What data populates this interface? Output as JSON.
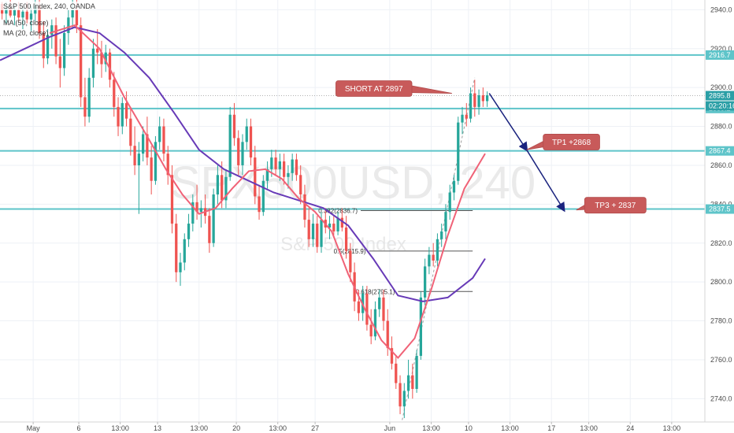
{
  "chart_data": {
    "type": "candlestick",
    "legend": {
      "symbol": "S&P 500 Index, 240, OANDA",
      "ma50": "MA (50, close)",
      "ma20": "MA (20, close)"
    },
    "watermark": {
      "ticker": "SPX500USD, 240",
      "description": "S&P 500 Index"
    },
    "y_axis": {
      "range": [
        2728,
        2945
      ],
      "ticks": [
        {
          "value": 2740,
          "label": "2740.0"
        },
        {
          "value": 2760,
          "label": "2760.0"
        },
        {
          "value": 2780,
          "label": "2780.0"
        },
        {
          "value": 2800,
          "label": "2800.0"
        },
        {
          "value": 2820,
          "label": "2820.0"
        },
        {
          "value": 2840,
          "label": "2840.0"
        },
        {
          "value": 2860,
          "label": "2860.0"
        },
        {
          "value": 2880,
          "label": "2880.0"
        },
        {
          "value": 2900,
          "label": "2900.0"
        },
        {
          "value": 2920,
          "label": "2920.0"
        },
        {
          "value": 2940,
          "label": "2940.0"
        }
      ]
    },
    "x_axis": {
      "range": [
        0,
        170
      ],
      "ticks": [
        {
          "x": 8,
          "label": "May"
        },
        {
          "x": 19,
          "label": "6"
        },
        {
          "x": 29,
          "label": "13:00"
        },
        {
          "x": 38,
          "label": "13"
        },
        {
          "x": 48,
          "label": "13:00"
        },
        {
          "x": 57,
          "label": "20"
        },
        {
          "x": 67,
          "label": "13:00"
        },
        {
          "x": 76,
          "label": "27"
        },
        {
          "x": 94,
          "label": "Jun"
        },
        {
          "x": 104,
          "label": "13:00"
        },
        {
          "x": 113,
          "label": "10"
        },
        {
          "x": 123,
          "label": "13:00"
        },
        {
          "x": 133,
          "label": "17"
        },
        {
          "x": 142,
          "label": "13:00"
        },
        {
          "x": 152,
          "label": "24"
        },
        {
          "x": 162,
          "label": "13:00"
        }
      ]
    },
    "horizontal_levels": [
      {
        "value": 2916.7,
        "label": "2916.7",
        "color": "#5ec4c9"
      },
      {
        "value": 2889.2,
        "label": "2889.2",
        "color": "#5ec4c9"
      },
      {
        "value": 2867.4,
        "label": "2867.4",
        "color": "#5ec4c9"
      },
      {
        "value": 2837.5,
        "label": "2837.5",
        "color": "#5ec4c9"
      }
    ],
    "current_price": {
      "value": 2895.8,
      "label": "2895.8",
      "countdown": "02:20:16",
      "color": "#2b9fa6"
    },
    "fibonacci": [
      {
        "label": "0.382(2836.7)",
        "value": 2836.7,
        "x_start": 87,
        "x_end": 114
      },
      {
        "label": "0.5(2815.9)",
        "value": 2815.9,
        "x_start": 89,
        "x_end": 114
      },
      {
        "label": "0.618(2795.1)",
        "value": 2795.1,
        "x_start": 96,
        "x_end": 114
      }
    ],
    "annotations": [
      {
        "text": "SHORT AT 2897",
        "x": 81,
        "y": 2903.5,
        "pointer_x": 109,
        "pointer_y": 2897
      },
      {
        "text": "TP1 +2868",
        "x": 131,
        "y": 2876,
        "pointer_x": 127,
        "pointer_y": 2868
      },
      {
        "text": "TP3 + 2837",
        "x": 141,
        "y": 2843.5,
        "pointer_x": 139,
        "pointer_y": 2837
      }
    ],
    "projection_path": [
      {
        "x": 118,
        "y": 2897
      },
      {
        "x": 127,
        "y": 2868
      },
      {
        "x": 136,
        "y": 2837
      }
    ],
    "ma50": [
      {
        "x": 0,
        "y": 2914
      },
      {
        "x": 6,
        "y": 2920
      },
      {
        "x": 12,
        "y": 2926
      },
      {
        "x": 18,
        "y": 2931
      },
      {
        "x": 24,
        "y": 2928
      },
      {
        "x": 30,
        "y": 2918
      },
      {
        "x": 36,
        "y": 2905
      },
      {
        "x": 42,
        "y": 2887
      },
      {
        "x": 48,
        "y": 2868
      },
      {
        "x": 54,
        "y": 2858
      },
      {
        "x": 60,
        "y": 2852
      },
      {
        "x": 66,
        "y": 2846
      },
      {
        "x": 72,
        "y": 2842
      },
      {
        "x": 78,
        "y": 2838
      },
      {
        "x": 84,
        "y": 2829
      },
      {
        "x": 90,
        "y": 2812
      },
      {
        "x": 96,
        "y": 2793
      },
      {
        "x": 102,
        "y": 2790
      },
      {
        "x": 108,
        "y": 2792
      },
      {
        "x": 114,
        "y": 2802
      },
      {
        "x": 117,
        "y": 2812
      }
    ],
    "ma20": [
      {
        "x": 12,
        "y": 2928
      },
      {
        "x": 18,
        "y": 2932
      },
      {
        "x": 24,
        "y": 2920
      },
      {
        "x": 30,
        "y": 2895
      },
      {
        "x": 36,
        "y": 2873
      },
      {
        "x": 40,
        "y": 2858
      },
      {
        "x": 44,
        "y": 2845
      },
      {
        "x": 48,
        "y": 2835
      },
      {
        "x": 52,
        "y": 2838
      },
      {
        "x": 56,
        "y": 2848
      },
      {
        "x": 60,
        "y": 2857
      },
      {
        "x": 64,
        "y": 2858
      },
      {
        "x": 68,
        "y": 2853
      },
      {
        "x": 72,
        "y": 2843
      },
      {
        "x": 76,
        "y": 2836
      },
      {
        "x": 80,
        "y": 2826
      },
      {
        "x": 84,
        "y": 2804
      },
      {
        "x": 88,
        "y": 2786
      },
      {
        "x": 92,
        "y": 2770
      },
      {
        "x": 96,
        "y": 2761
      },
      {
        "x": 100,
        "y": 2771
      },
      {
        "x": 104,
        "y": 2796
      },
      {
        "x": 108,
        "y": 2824
      },
      {
        "x": 112,
        "y": 2848
      },
      {
        "x": 117,
        "y": 2866
      }
    ],
    "candles": [
      {
        "x": 0,
        "o": 2943,
        "h": 2944,
        "l": 2935,
        "c": 2938
      },
      {
        "x": 1,
        "o": 2938,
        "h": 2944,
        "l": 2933,
        "c": 2941
      },
      {
        "x": 2,
        "o": 2941,
        "h": 2945,
        "l": 2936,
        "c": 2937
      },
      {
        "x": 3,
        "o": 2937,
        "h": 2942,
        "l": 2932,
        "c": 2940
      },
      {
        "x": 4,
        "o": 2940,
        "h": 2944,
        "l": 2934,
        "c": 2936
      },
      {
        "x": 5,
        "o": 2936,
        "h": 2941,
        "l": 2930,
        "c": 2939
      },
      {
        "x": 6,
        "o": 2939,
        "h": 2944,
        "l": 2933,
        "c": 2935
      },
      {
        "x": 7,
        "o": 2935,
        "h": 2942,
        "l": 2929,
        "c": 2938
      },
      {
        "x": 8,
        "o": 2938,
        "h": 2945,
        "l": 2934,
        "c": 2942
      },
      {
        "x": 9,
        "o": 2942,
        "h": 2945,
        "l": 2925,
        "c": 2928
      },
      {
        "x": 10,
        "o": 2928,
        "h": 2934,
        "l": 2910,
        "c": 2915
      },
      {
        "x": 11,
        "o": 2915,
        "h": 2930,
        "l": 2912,
        "c": 2927
      },
      {
        "x": 12,
        "o": 2927,
        "h": 2935,
        "l": 2920,
        "c": 2932
      },
      {
        "x": 13,
        "o": 2932,
        "h": 2936,
        "l": 2912,
        "c": 2916
      },
      {
        "x": 14,
        "o": 2916,
        "h": 2925,
        "l": 2900,
        "c": 2910
      },
      {
        "x": 15,
        "o": 2910,
        "h": 2932,
        "l": 2906,
        "c": 2928
      },
      {
        "x": 16,
        "o": 2928,
        "h": 2940,
        "l": 2922,
        "c": 2936
      },
      {
        "x": 17,
        "o": 2936,
        "h": 2945,
        "l": 2930,
        "c": 2940
      },
      {
        "x": 18,
        "o": 2940,
        "h": 2945,
        "l": 2928,
        "c": 2932
      },
      {
        "x": 19,
        "o": 2932,
        "h": 2936,
        "l": 2890,
        "c": 2895
      },
      {
        "x": 20,
        "o": 2895,
        "h": 2905,
        "l": 2880,
        "c": 2885
      },
      {
        "x": 21,
        "o": 2885,
        "h": 2910,
        "l": 2882,
        "c": 2905
      },
      {
        "x": 22,
        "o": 2905,
        "h": 2925,
        "l": 2900,
        "c": 2920
      },
      {
        "x": 23,
        "o": 2920,
        "h": 2930,
        "l": 2912,
        "c": 2918
      },
      {
        "x": 24,
        "o": 2918,
        "h": 2924,
        "l": 2905,
        "c": 2912
      },
      {
        "x": 25,
        "o": 2912,
        "h": 2922,
        "l": 2908,
        "c": 2918
      },
      {
        "x": 26,
        "o": 2918,
        "h": 2920,
        "l": 2900,
        "c": 2904
      },
      {
        "x": 27,
        "o": 2904,
        "h": 2908,
        "l": 2885,
        "c": 2890
      },
      {
        "x": 28,
        "o": 2890,
        "h": 2895,
        "l": 2875,
        "c": 2880
      },
      {
        "x": 29,
        "o": 2880,
        "h": 2895,
        "l": 2876,
        "c": 2892
      },
      {
        "x": 30,
        "o": 2892,
        "h": 2898,
        "l": 2880,
        "c": 2884
      },
      {
        "x": 31,
        "o": 2884,
        "h": 2890,
        "l": 2865,
        "c": 2870
      },
      {
        "x": 32,
        "o": 2870,
        "h": 2880,
        "l": 2855,
        "c": 2860
      },
      {
        "x": 33,
        "o": 2860,
        "h": 2872,
        "l": 2835,
        "c": 2866
      },
      {
        "x": 34,
        "o": 2866,
        "h": 2880,
        "l": 2862,
        "c": 2876
      },
      {
        "x": 35,
        "o": 2876,
        "h": 2885,
        "l": 2860,
        "c": 2864
      },
      {
        "x": 36,
        "o": 2864,
        "h": 2870,
        "l": 2845,
        "c": 2852
      },
      {
        "x": 37,
        "o": 2852,
        "h": 2875,
        "l": 2850,
        "c": 2872
      },
      {
        "x": 38,
        "o": 2872,
        "h": 2885,
        "l": 2868,
        "c": 2880
      },
      {
        "x": 39,
        "o": 2880,
        "h": 2884,
        "l": 2862,
        "c": 2866
      },
      {
        "x": 40,
        "o": 2866,
        "h": 2870,
        "l": 2850,
        "c": 2855
      },
      {
        "x": 41,
        "o": 2855,
        "h": 2860,
        "l": 2825,
        "c": 2830
      },
      {
        "x": 42,
        "o": 2830,
        "h": 2835,
        "l": 2800,
        "c": 2805
      },
      {
        "x": 43,
        "o": 2805,
        "h": 2815,
        "l": 2798,
        "c": 2810
      },
      {
        "x": 44,
        "o": 2810,
        "h": 2825,
        "l": 2806,
        "c": 2822
      },
      {
        "x": 45,
        "o": 2822,
        "h": 2835,
        "l": 2818,
        "c": 2830
      },
      {
        "x": 46,
        "o": 2830,
        "h": 2845,
        "l": 2826,
        "c": 2841
      },
      {
        "x": 47,
        "o": 2841,
        "h": 2850,
        "l": 2832,
        "c": 2836
      },
      {
        "x": 48,
        "o": 2836,
        "h": 2842,
        "l": 2828,
        "c": 2838
      },
      {
        "x": 49,
        "o": 2838,
        "h": 2845,
        "l": 2830,
        "c": 2834
      },
      {
        "x": 50,
        "o": 2834,
        "h": 2838,
        "l": 2815,
        "c": 2820
      },
      {
        "x": 51,
        "o": 2820,
        "h": 2848,
        "l": 2818,
        "c": 2845
      },
      {
        "x": 52,
        "o": 2845,
        "h": 2860,
        "l": 2840,
        "c": 2855
      },
      {
        "x": 53,
        "o": 2855,
        "h": 2862,
        "l": 2838,
        "c": 2842
      },
      {
        "x": 54,
        "o": 2842,
        "h": 2858,
        "l": 2838,
        "c": 2854
      },
      {
        "x": 55,
        "o": 2854,
        "h": 2890,
        "l": 2852,
        "c": 2886
      },
      {
        "x": 56,
        "o": 2886,
        "h": 2892,
        "l": 2870,
        "c": 2874
      },
      {
        "x": 57,
        "o": 2874,
        "h": 2878,
        "l": 2855,
        "c": 2860
      },
      {
        "x": 58,
        "o": 2860,
        "h": 2876,
        "l": 2855,
        "c": 2872
      },
      {
        "x": 59,
        "o": 2872,
        "h": 2884,
        "l": 2868,
        "c": 2880
      },
      {
        "x": 60,
        "o": 2880,
        "h": 2884,
        "l": 2860,
        "c": 2864
      },
      {
        "x": 61,
        "o": 2864,
        "h": 2870,
        "l": 2840,
        "c": 2844
      },
      {
        "x": 62,
        "o": 2844,
        "h": 2850,
        "l": 2832,
        "c": 2836
      },
      {
        "x": 63,
        "o": 2836,
        "h": 2855,
        "l": 2834,
        "c": 2852
      },
      {
        "x": 64,
        "o": 2852,
        "h": 2862,
        "l": 2848,
        "c": 2858
      },
      {
        "x": 65,
        "o": 2858,
        "h": 2868,
        "l": 2854,
        "c": 2864
      },
      {
        "x": 66,
        "o": 2864,
        "h": 2868,
        "l": 2855,
        "c": 2858
      },
      {
        "x": 67,
        "o": 2858,
        "h": 2866,
        "l": 2852,
        "c": 2862
      },
      {
        "x": 68,
        "o": 2862,
        "h": 2866,
        "l": 2850,
        "c": 2854
      },
      {
        "x": 69,
        "o": 2854,
        "h": 2860,
        "l": 2848,
        "c": 2856
      },
      {
        "x": 70,
        "o": 2856,
        "h": 2866,
        "l": 2852,
        "c": 2863
      },
      {
        "x": 71,
        "o": 2863,
        "h": 2866,
        "l": 2852,
        "c": 2855
      },
      {
        "x": 72,
        "o": 2855,
        "h": 2860,
        "l": 2840,
        "c": 2845
      },
      {
        "x": 73,
        "o": 2845,
        "h": 2850,
        "l": 2828,
        "c": 2832
      },
      {
        "x": 74,
        "o": 2832,
        "h": 2838,
        "l": 2818,
        "c": 2822
      },
      {
        "x": 75,
        "o": 2822,
        "h": 2835,
        "l": 2818,
        "c": 2830
      },
      {
        "x": 76,
        "o": 2830,
        "h": 2834,
        "l": 2815,
        "c": 2818
      },
      {
        "x": 77,
        "o": 2818,
        "h": 2836,
        "l": 2815,
        "c": 2832
      },
      {
        "x": 78,
        "o": 2832,
        "h": 2838,
        "l": 2825,
        "c": 2828
      },
      {
        "x": 79,
        "o": 2828,
        "h": 2834,
        "l": 2822,
        "c": 2830
      },
      {
        "x": 80,
        "o": 2830,
        "h": 2834,
        "l": 2824,
        "c": 2826
      },
      {
        "x": 81,
        "o": 2826,
        "h": 2836,
        "l": 2824,
        "c": 2833
      },
      {
        "x": 82,
        "o": 2833,
        "h": 2838,
        "l": 2826,
        "c": 2828
      },
      {
        "x": 83,
        "o": 2828,
        "h": 2834,
        "l": 2812,
        "c": 2816
      },
      {
        "x": 84,
        "o": 2816,
        "h": 2820,
        "l": 2800,
        "c": 2805
      },
      {
        "x": 85,
        "o": 2805,
        "h": 2810,
        "l": 2785,
        "c": 2790
      },
      {
        "x": 86,
        "o": 2790,
        "h": 2796,
        "l": 2780,
        "c": 2784
      },
      {
        "x": 87,
        "o": 2784,
        "h": 2798,
        "l": 2780,
        "c": 2794
      },
      {
        "x": 88,
        "o": 2794,
        "h": 2798,
        "l": 2775,
        "c": 2778
      },
      {
        "x": 89,
        "o": 2778,
        "h": 2786,
        "l": 2768,
        "c": 2772
      },
      {
        "x": 90,
        "o": 2772,
        "h": 2790,
        "l": 2770,
        "c": 2786
      },
      {
        "x": 91,
        "o": 2786,
        "h": 2796,
        "l": 2782,
        "c": 2792
      },
      {
        "x": 92,
        "o": 2792,
        "h": 2796,
        "l": 2775,
        "c": 2780
      },
      {
        "x": 93,
        "o": 2780,
        "h": 2786,
        "l": 2762,
        "c": 2766
      },
      {
        "x": 94,
        "o": 2766,
        "h": 2772,
        "l": 2755,
        "c": 2758
      },
      {
        "x": 95,
        "o": 2758,
        "h": 2762,
        "l": 2745,
        "c": 2748
      },
      {
        "x": 96,
        "o": 2748,
        "h": 2752,
        "l": 2732,
        "c": 2736
      },
      {
        "x": 97,
        "o": 2736,
        "h": 2748,
        "l": 2730,
        "c": 2744
      },
      {
        "x": 98,
        "o": 2744,
        "h": 2760,
        "l": 2740,
        "c": 2752
      },
      {
        "x": 99,
        "o": 2752,
        "h": 2758,
        "l": 2740,
        "c": 2745
      },
      {
        "x": 100,
        "o": 2745,
        "h": 2765,
        "l": 2743,
        "c": 2762
      },
      {
        "x": 101,
        "o": 2762,
        "h": 2795,
        "l": 2760,
        "c": 2792
      },
      {
        "x": 102,
        "o": 2792,
        "h": 2812,
        "l": 2788,
        "c": 2808
      },
      {
        "x": 103,
        "o": 2808,
        "h": 2818,
        "l": 2804,
        "c": 2814
      },
      {
        "x": 104,
        "o": 2814,
        "h": 2820,
        "l": 2808,
        "c": 2811
      },
      {
        "x": 105,
        "o": 2811,
        "h": 2825,
        "l": 2808,
        "c": 2822
      },
      {
        "x": 106,
        "o": 2822,
        "h": 2830,
        "l": 2818,
        "c": 2826
      },
      {
        "x": 107,
        "o": 2826,
        "h": 2840,
        "l": 2822,
        "c": 2836
      },
      {
        "x": 108,
        "o": 2836,
        "h": 2850,
        "l": 2832,
        "c": 2846
      },
      {
        "x": 109,
        "o": 2846,
        "h": 2855,
        "l": 2842,
        "c": 2852
      },
      {
        "x": 110,
        "o": 2852,
        "h": 2885,
        "l": 2850,
        "c": 2882
      },
      {
        "x": 111,
        "o": 2882,
        "h": 2890,
        "l": 2876,
        "c": 2886
      },
      {
        "x": 112,
        "o": 2886,
        "h": 2892,
        "l": 2880,
        "c": 2884
      },
      {
        "x": 113,
        "o": 2884,
        "h": 2900,
        "l": 2882,
        "c": 2897
      },
      {
        "x": 114,
        "o": 2897,
        "h": 2904,
        "l": 2885,
        "c": 2890
      },
      {
        "x": 115,
        "o": 2890,
        "h": 2899,
        "l": 2886,
        "c": 2896
      },
      {
        "x": 116,
        "o": 2896,
        "h": 2900,
        "l": 2890,
        "c": 2893
      },
      {
        "x": 117,
        "o": 2893,
        "h": 2898,
        "l": 2890,
        "c": 2896
      }
    ],
    "colors": {
      "up": "#26a69a",
      "down": "#ef5350",
      "ma50": "#673ab7",
      "ma20": "#f06277",
      "level": "#5ec4c9",
      "callout": "#c85a5a",
      "arrow": "#1a237e",
      "grid": "#eef1f6",
      "dots": "#b0b0b0"
    }
  }
}
